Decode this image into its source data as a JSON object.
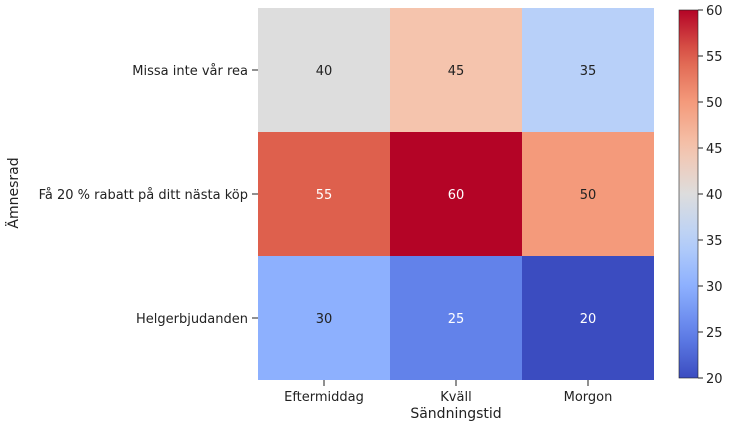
{
  "chart_data": {
    "type": "heatmap",
    "title": "",
    "xlabel": "Sändningstid",
    "ylabel": "Ämnesrad",
    "x_categories": [
      "Eftermiddag",
      "Kväll",
      "Morgon"
    ],
    "y_categories": [
      "Missa inte vår rea",
      "Få 20 % rabatt på ditt nästa köp",
      "Helgerbjudanden"
    ],
    "values": [
      [
        40,
        45,
        35
      ],
      [
        55,
        60,
        50
      ],
      [
        30,
        25,
        20
      ]
    ],
    "colormap": "coolwarm",
    "vmin": 20,
    "vmax": 60,
    "colorbar_ticks": [
      20,
      25,
      30,
      35,
      40,
      45,
      50,
      55,
      60
    ],
    "annotations": true
  }
}
